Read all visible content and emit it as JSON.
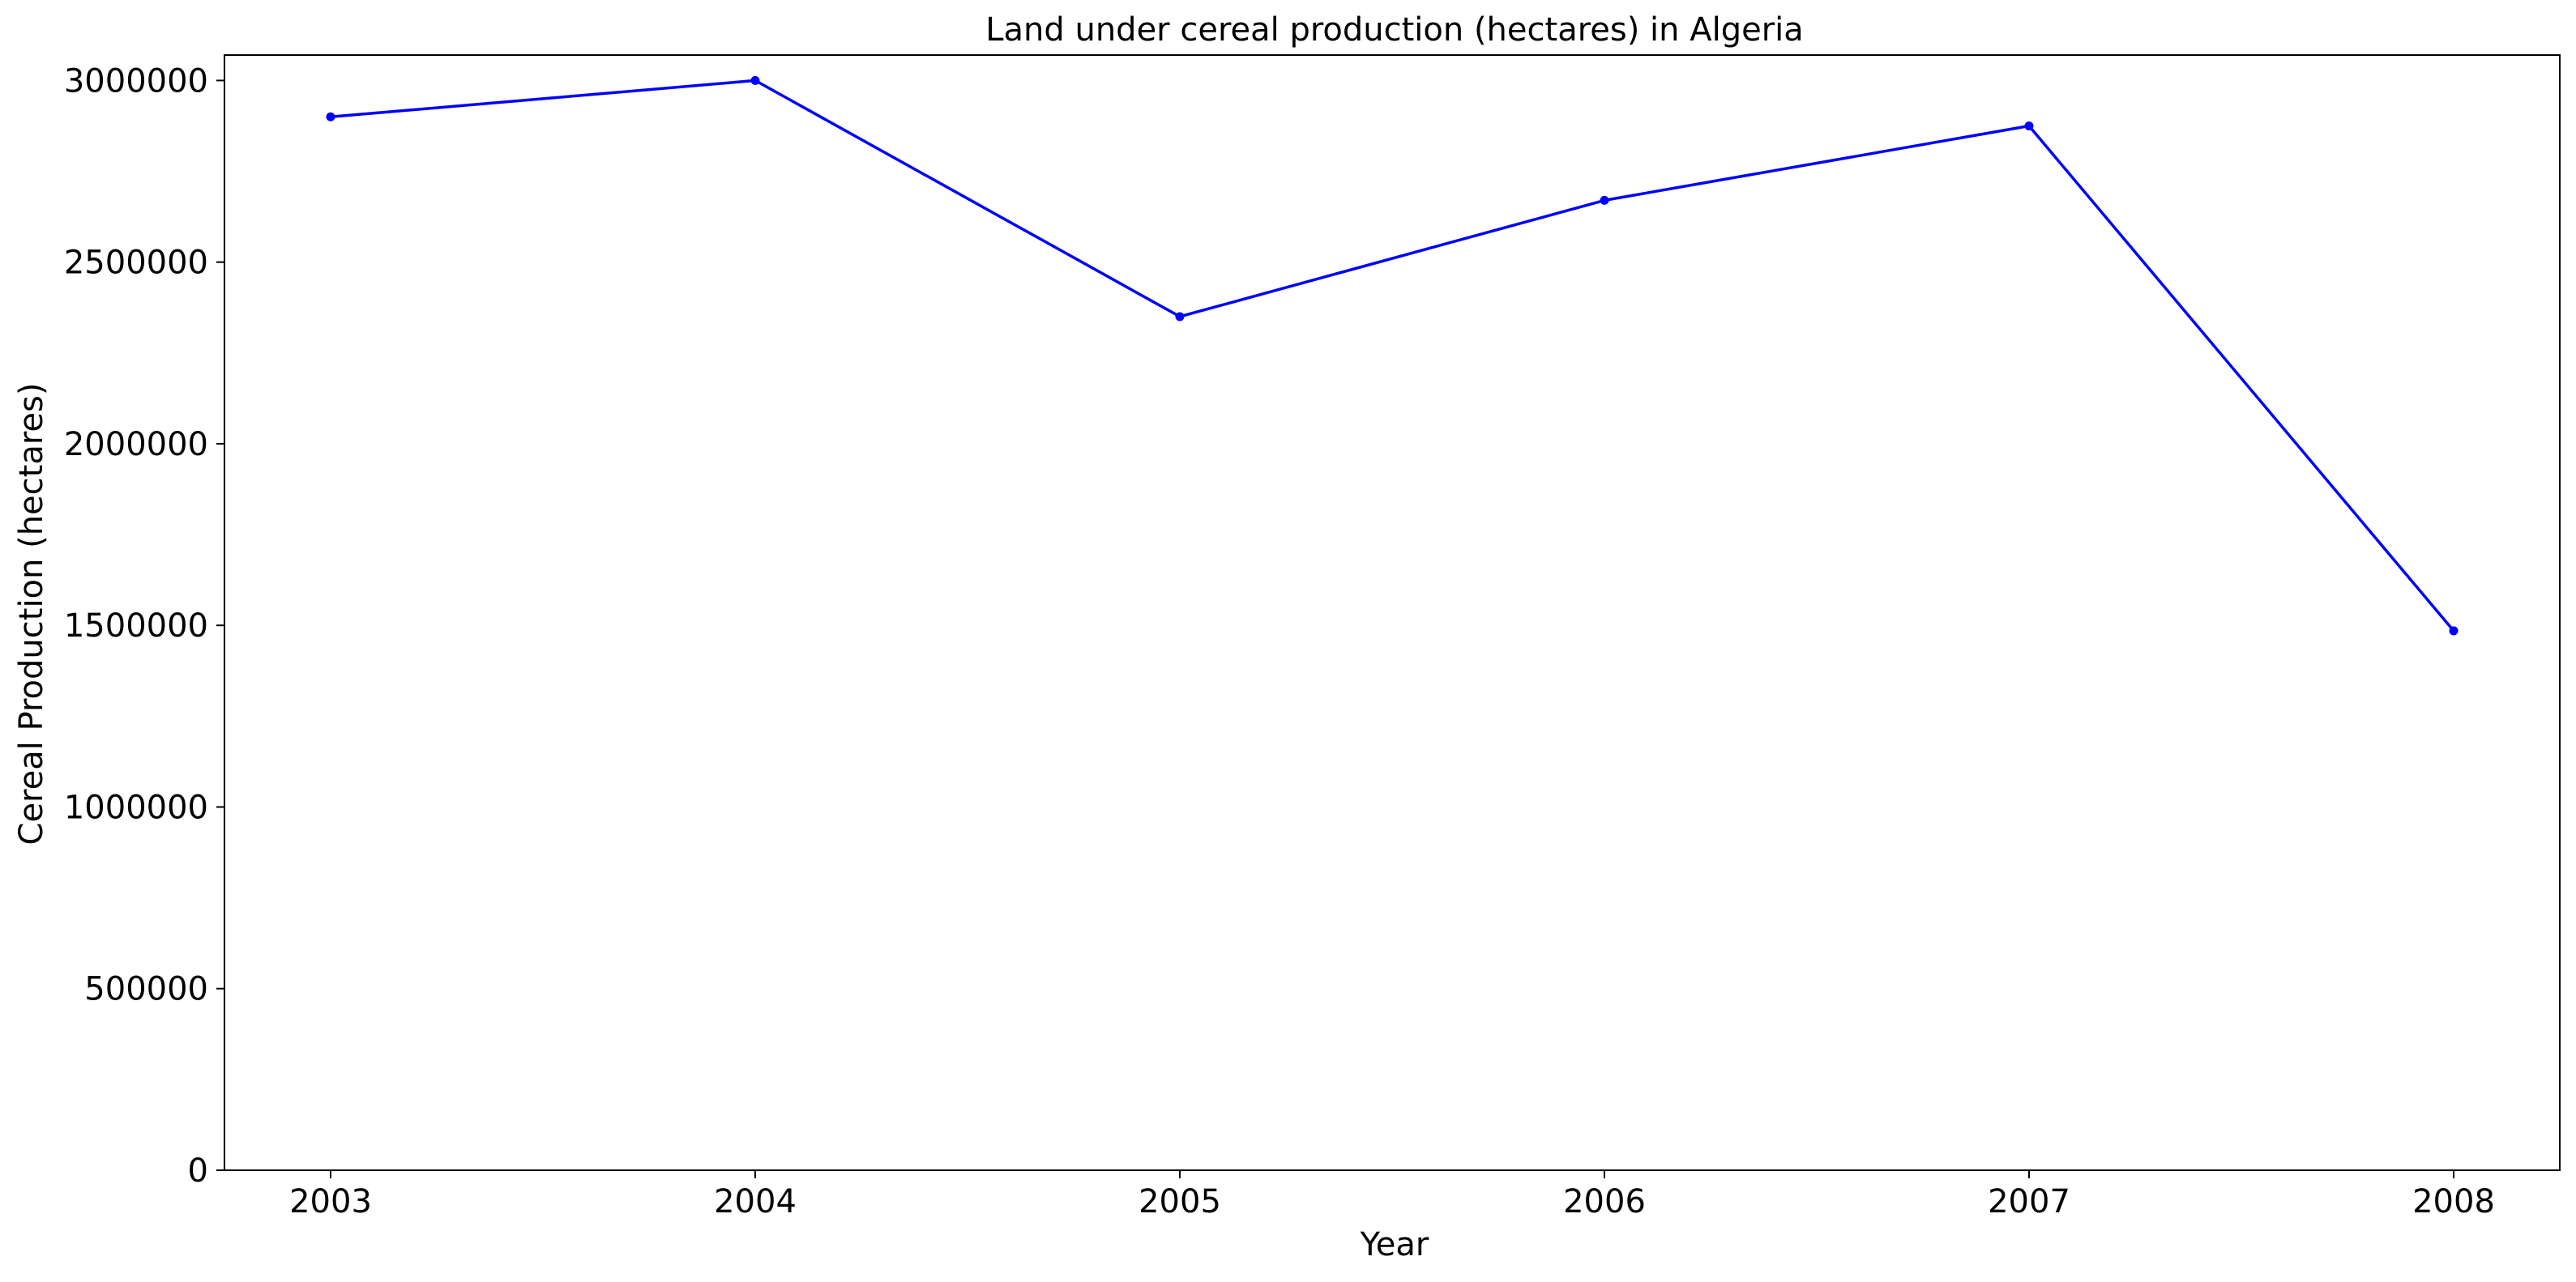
{
  "chart_data": {
    "type": "line",
    "title": "Land under cereal production (hectares) in Algeria",
    "xlabel": "Year",
    "ylabel": "Cereal Production (hectares)",
    "categories": [
      "2003",
      "2004",
      "2005",
      "2006",
      "2007",
      "2008"
    ],
    "ylim": [
      0,
      3070000
    ],
    "yticks": [
      0,
      500000,
      1000000,
      1500000,
      2000000,
      2500000,
      3000000
    ],
    "ytick_labels": [
      "0",
      "500000",
      "1000000",
      "1500000",
      "2000000",
      "2500000",
      "3000000"
    ],
    "grid": false,
    "legend": "none",
    "series": [
      {
        "values": [
          2900000,
          3000000,
          2350000,
          2670000,
          2875000,
          1485000
        ],
        "color": "#0000ff",
        "marker": "circle"
      }
    ]
  }
}
